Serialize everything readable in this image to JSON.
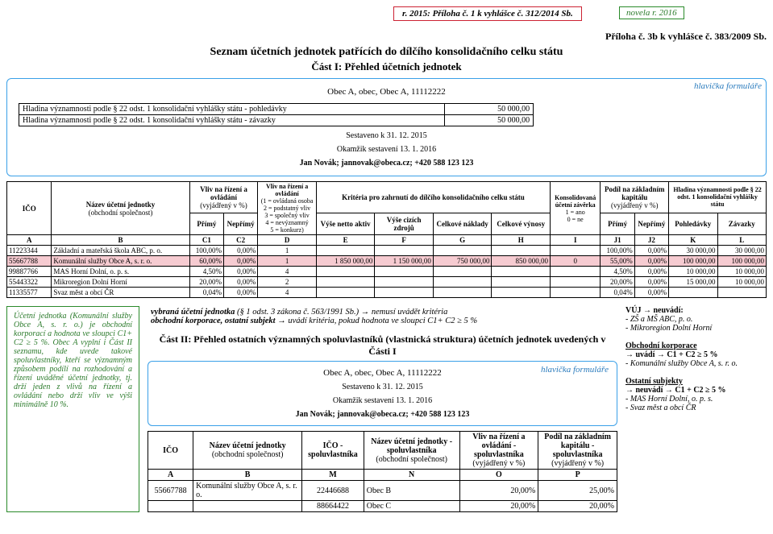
{
  "top": {
    "red_box": "r. 2015: Příloha č. 1 k vyhlášce č. 312/2014 Sb.",
    "green_box": "novela r. 2016",
    "priloha_right": "Příloha č. 3b k vyhlášce č. 383/2009 Sb."
  },
  "titles": {
    "main": "Seznam účetních jednotek patřících do dílčího konsolidačního celku státu",
    "part1": "Část I: Přehled účetních jednotek",
    "part2": "Část II: Přehled ostatních významných spoluvlastníků (vlastnická struktura) účetních jednotek uvedených v Části I"
  },
  "header": {
    "entity_line": "Obec A, obec, Obec A, 11112222",
    "blue_label": "hlavička formuláře",
    "hladina1_label": "Hladina významnosti podle § 22 odst. 1 konsolidační vyhlášky státu - pohledávky",
    "hladina1_val": "50 000,00",
    "hladina2_label": "Hladina významnosti podle § 22 odst. 1 konsolidační vyhlášky státu - závazky",
    "hladina2_val": "50 000,00",
    "meta1": "Sestaveno k 31. 12. 2015",
    "meta2": "Okamžik sestavení 13. 1. 2016",
    "meta3": "Jan Novák; jannovak@obeca.cz; +420 588 123 123"
  },
  "cols": {
    "ico": "IČO",
    "nazev": "Název účetní jednotky",
    "nazev_sub": "(obchodní společnost)",
    "vliv_rizeni": "Vliv na řízení a ovládání",
    "vliv_rizeni_sub": "(vyjádřený v %)",
    "primy": "Přímý",
    "neprimy": "Nepřímý",
    "vliv_ro": "Vliv na řízení a ovládání",
    "vliv_ro_sub": "(1 = ovládaná osoba\n2 = podstatný vliv\n3 = společný vliv\n4 = nevýznamný\n5 = konkurz)",
    "kriteria": "Kritéria pro zahrnutí do dílčího konsolidačního celku státu",
    "netto": "Výše netto aktiv",
    "cizi": "Výše cizích zdrojů",
    "naklady": "Celkové náklady",
    "vynosy": "Celkové výnosy",
    "konsol": "Konsolidovaná účetní závěrka",
    "konsol_sub": "1 = ano\n0 = ne",
    "podil": "Podíl na základním kapitálu",
    "podil_sub": "(vyjádřený v %)",
    "hladina": "Hladina významnosti podle § 22 odst. 1 konsolidační vyhlášky státu",
    "pohled": "Pohledávky",
    "zavazky": "Závazky"
  },
  "letters": [
    "A",
    "B",
    "C1",
    "C2",
    "D",
    "E",
    "F",
    "G",
    "H",
    "I",
    "J1",
    "J2",
    "K",
    "L"
  ],
  "rows": [
    {
      "ico": "11223344",
      "nazev": "Základní a mateřská škola ABC, p. o.",
      "c1": "100,00%",
      "c2": "0,00%",
      "d": "1",
      "e": "",
      "f": "",
      "g": "",
      "h": "",
      "i": "",
      "j1": "100,00%",
      "j2": "0,00%",
      "k": "30 000,00",
      "l": "30 000,00",
      "hl": false
    },
    {
      "ico": "55667788",
      "nazev": "Komunální služby Obce A, s. r. o.",
      "c1": "60,00%",
      "c2": "0,00%",
      "d": "1",
      "e": "1 850 000,00",
      "f": "1 150 000,00",
      "g": "750 000,00",
      "h": "850 000,00",
      "i": "0",
      "j1": "55,00%",
      "j2": "0,00%",
      "k": "100 000,00",
      "l": "100 000,00",
      "hl": true
    },
    {
      "ico": "99887766",
      "nazev": "MAS Horní Dolní, o. p. s.",
      "c1": "4,50%",
      "c2": "0,00%",
      "d": "4",
      "e": "",
      "f": "",
      "g": "",
      "h": "",
      "i": "",
      "j1": "4,50%",
      "j2": "0,00%",
      "k": "10 000,00",
      "l": "10 000,00",
      "hl": false
    },
    {
      "ico": "55443322",
      "nazev": "Mikroregion Dolní Horní",
      "c1": "20,00%",
      "c2": "0,00%",
      "d": "2",
      "e": "",
      "f": "",
      "g": "",
      "h": "",
      "i": "",
      "j1": "20,00%",
      "j2": "0,00%",
      "k": "15 000,00",
      "l": "10 000,00",
      "hl": false
    },
    {
      "ico": "11335577",
      "nazev": "Svaz měst a obcí ČR",
      "c1": "0,04%",
      "c2": "0,00%",
      "d": "4",
      "e": "",
      "f": "",
      "g": "",
      "h": "",
      "i": "",
      "j1": "0,04%",
      "j2": "0,00%",
      "k": "",
      "l": "",
      "hl": false
    }
  ],
  "note_left": "Účetní jednotka (Komunální služby Obce A, s. r. o.) je obchodní korporací a hodnota ve sloupci C1+ C2 ≥ 5 %. Obec A vyplní i Část II seznamu, kde uvede takové spoluvlastníky, kteří se významným způsobem podílí na rozhodování a řízení uváděné účetní jednotky, tj. drží jeden z vlivů na řízení a ovládání nebo drží vliv ve výši minimálně 10 %.",
  "crit": {
    "line1a": "vybraná účetní jednotka",
    "line1b": " (§ 1 odst. 3 zákona č. 563/1991 Sb.) → nemusí uvádět kritéria",
    "line2a": "obchodní korporace, ostatní subjekt",
    "line2b": " → uvádí kritéria, pokud hodnota ve sloupci C1+ C2 ≥ 5 %"
  },
  "hdr2": {
    "entity_line": "Obec A, obec, Obec A, 11112222",
    "meta1": "Sestaveno k 31. 12. 2015",
    "meta2": "Okamžik sestavení 13. 1. 2016",
    "meta3": "Jan Novák; jannovak@obeca.cz; +420 588 123 123",
    "blue_label": "hlavička formuláře"
  },
  "note_right": {
    "vuj_hdr": "VÚJ → neuvádí:",
    "vuj1": "- ZŠ a MŠ ABC, p. o.",
    "vuj2": "- Mikroregion Dolní Horní",
    "obk_hdr": "Obchodní korporace",
    "obk1": "→ uvádí → C1 + C2 ≥ 5 %",
    "obk2": "- Komunální služby Obce A, s. r. o.",
    "ost_hdr": "Ostatní subjekty",
    "ost1": "→ neuvádí → C1 + C2 ≥ 5 %",
    "ost2": "- MAS Horní Dolní, o. p. s.",
    "ost3": "- Svaz měst a obcí ČR"
  },
  "p2cols": {
    "ico": "IČO",
    "nazev": "Název účetní jednotky",
    "nazev_sub": "(obchodní společnost)",
    "ico_sp": "IČO - spoluvlastníka",
    "nazev_sp": "Název účetní jednotky - spoluvlastníka",
    "nazev_sp_sub": "(obchodní společnost)",
    "vliv_sp": "Vliv na řízení a ovládání - spoluvlastníka",
    "vliv_sp_sub": "(vyjádřený v %)",
    "podil_sp": "Podíl na základním kapitálu - spoluvlastníka",
    "podil_sp_sub": "(vyjádřený v %)"
  },
  "p2letters": [
    "A",
    "B",
    "M",
    "N",
    "O",
    "P"
  ],
  "p2rows": [
    {
      "ico": "55667788",
      "nazev": "Komunální služby Obce A, s. r. o.",
      "m": "22446688",
      "n": "Obec B",
      "o": "20,00%",
      "p": "25,00%"
    },
    {
      "ico": "",
      "nazev": "",
      "m": "88664422",
      "n": "Obec C",
      "o": "20,00%",
      "p": "20,00%"
    }
  ]
}
